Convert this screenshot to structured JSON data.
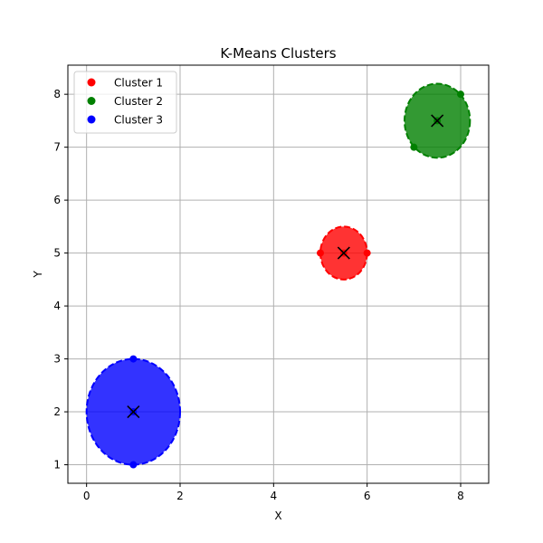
{
  "chart_data": {
    "type": "scatter",
    "title": "K-Means Clusters",
    "xlabel": "X",
    "ylabel": "Y",
    "xlim": [
      -0.4,
      8.6
    ],
    "ylim": [
      0.65,
      8.55
    ],
    "xticks": [
      0,
      2,
      4,
      6,
      8
    ],
    "yticks": [
      1,
      2,
      3,
      4,
      5,
      6,
      7,
      8
    ],
    "grid": true,
    "legend_position": "upper-left",
    "series": [
      {
        "name": "Cluster 1",
        "color": "#ff0000",
        "points": [
          [
            5,
            5
          ],
          [
            6,
            5
          ],
          [
            5.5,
            5
          ]
        ],
        "centroid": [
          5.5,
          5
        ],
        "radius": 0.5
      },
      {
        "name": "Cluster 2",
        "color": "#008000",
        "points": [
          [
            7,
            7
          ],
          [
            8,
            8
          ],
          [
            7.5,
            7.5
          ]
        ],
        "centroid": [
          7.5,
          7.5
        ],
        "radius": 0.7
      },
      {
        "name": "Cluster 3",
        "color": "#0000ff",
        "points": [
          [
            1,
            1
          ],
          [
            1,
            3
          ],
          [
            1,
            2
          ]
        ],
        "centroid": [
          1,
          2
        ],
        "radius": 1.0
      }
    ]
  }
}
